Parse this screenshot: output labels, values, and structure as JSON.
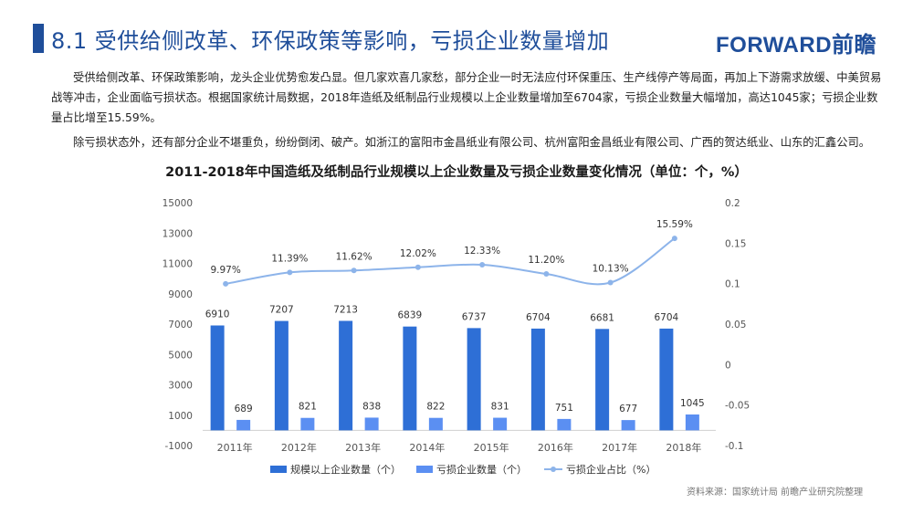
{
  "page": {
    "title": "8.1 受供给侧改革、环保政策等影响，亏损企业数量增加",
    "logo": "FORWARD前瞻",
    "paragraphs": [
      "受供给侧改革、环保政策影响，龙头企业优势愈发凸显。但几家欢喜几家愁，部分企业一时无法应付环保重压、生产线停产等局面，再加上下游需求放缓、中美贸易战等冲击，企业面临亏损状态。根据国家统计局数据，2018年造纸及纸制品行业规模以上企业数量增加至6704家，亏损企业数量大幅增加，高达1045家；亏损企业数量占比增至15.59%。",
      "除亏损状态外，还有部分企业不堪重负，纷纷倒闭、破产。如浙江的富阳市金昌纸业有限公司、杭州富阳金昌纸业有限公司、广西的贺达纸业、山东的汇鑫公司。"
    ],
    "source": "资料来源：国家统计局  前瞻产业研究院整理"
  },
  "colors": {
    "brand": "#1f4e9a",
    "bar_primary": "#2e6fd6",
    "bar_secondary": "#5b8ff2",
    "line": "#8db4ea",
    "axis_text": "#555555"
  },
  "chart_data": {
    "type": "bar",
    "title": "2011-2018年中国造纸及纸制品行业规模以上企业数量及亏损企业数量变化情况（单位：个，%）",
    "categories": [
      "2011年",
      "2012年",
      "2013年",
      "2014年",
      "2015年",
      "2016年",
      "2017年",
      "2018年"
    ],
    "series": [
      {
        "name": "规模以上企业数量（个）",
        "type": "bar",
        "axis": "left",
        "values": [
          6910,
          7207,
          7213,
          6839,
          6737,
          6704,
          6681,
          6704
        ]
      },
      {
        "name": "亏损企业数量（个）",
        "type": "bar",
        "axis": "left",
        "values": [
          689,
          821,
          838,
          822,
          831,
          751,
          677,
          1045
        ]
      },
      {
        "name": "亏损企业占比（%）",
        "type": "line",
        "axis": "right",
        "values": [
          0.0997,
          0.1139,
          0.1162,
          0.1202,
          0.1233,
          0.112,
          0.1013,
          0.1559
        ],
        "labels": [
          "9.97%",
          "11.39%",
          "11.62%",
          "12.02%",
          "12.33%",
          "11.20%",
          "10.13%",
          "15.59%"
        ]
      }
    ],
    "y_left": {
      "min": -1000,
      "max": 15000,
      "ticks": [
        -1000,
        1000,
        3000,
        5000,
        7000,
        9000,
        11000,
        13000,
        15000
      ]
    },
    "y_right": {
      "min": -0.1,
      "max": 0.2,
      "ticks": [
        -0.1,
        -0.05,
        0,
        0.05,
        0.1,
        0.15,
        0.2
      ],
      "tick_labels": [
        "-0.1",
        "-0.05",
        "0",
        "0.05",
        "0.1",
        "0.15",
        "0.2"
      ]
    },
    "grid": false,
    "legend_position": "bottom"
  }
}
